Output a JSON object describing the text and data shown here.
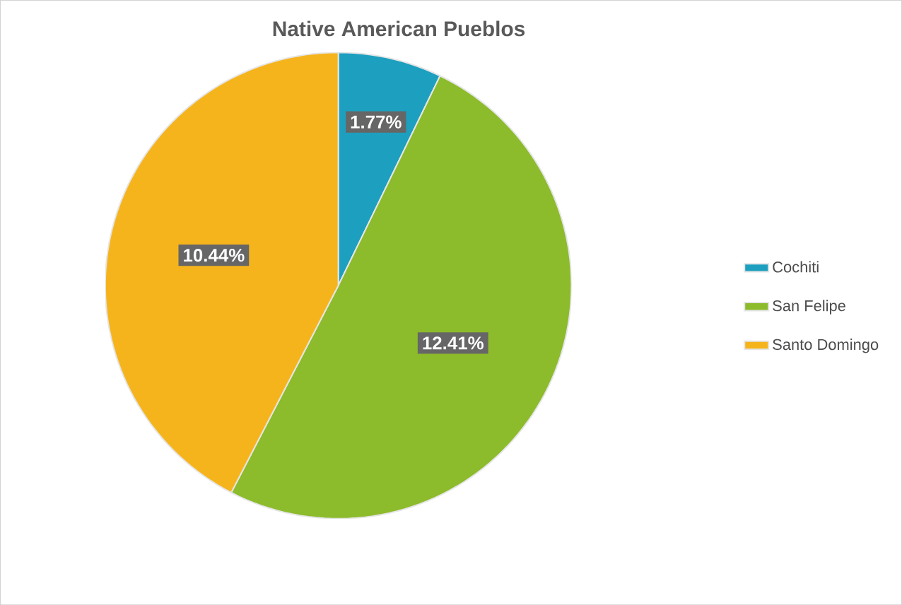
{
  "chart_data": {
    "type": "pie",
    "title": "Native American Pueblos",
    "categories": [
      "Cochiti",
      "San Felipe",
      "Santo Domingo"
    ],
    "values": [
      1.77,
      12.41,
      10.44
    ],
    "colors": [
      "#1d9fbf",
      "#8cbb2b",
      "#f6b41c"
    ],
    "value_labels": [
      "1.77%",
      "12.41%",
      "10.44%"
    ],
    "legend": "right"
  }
}
